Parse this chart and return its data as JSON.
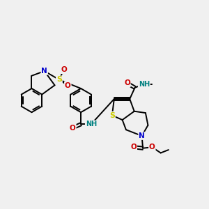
{
  "bg_color": "#f0f0f0",
  "bond_color": "#000000",
  "bond_width": 1.4,
  "atom_colors": {
    "N": "#0000cc",
    "O": "#cc0000",
    "S": "#cccc00",
    "NH": "#008080",
    "C": "#000000"
  },
  "figsize": [
    3.0,
    3.0
  ],
  "dpi": 100
}
